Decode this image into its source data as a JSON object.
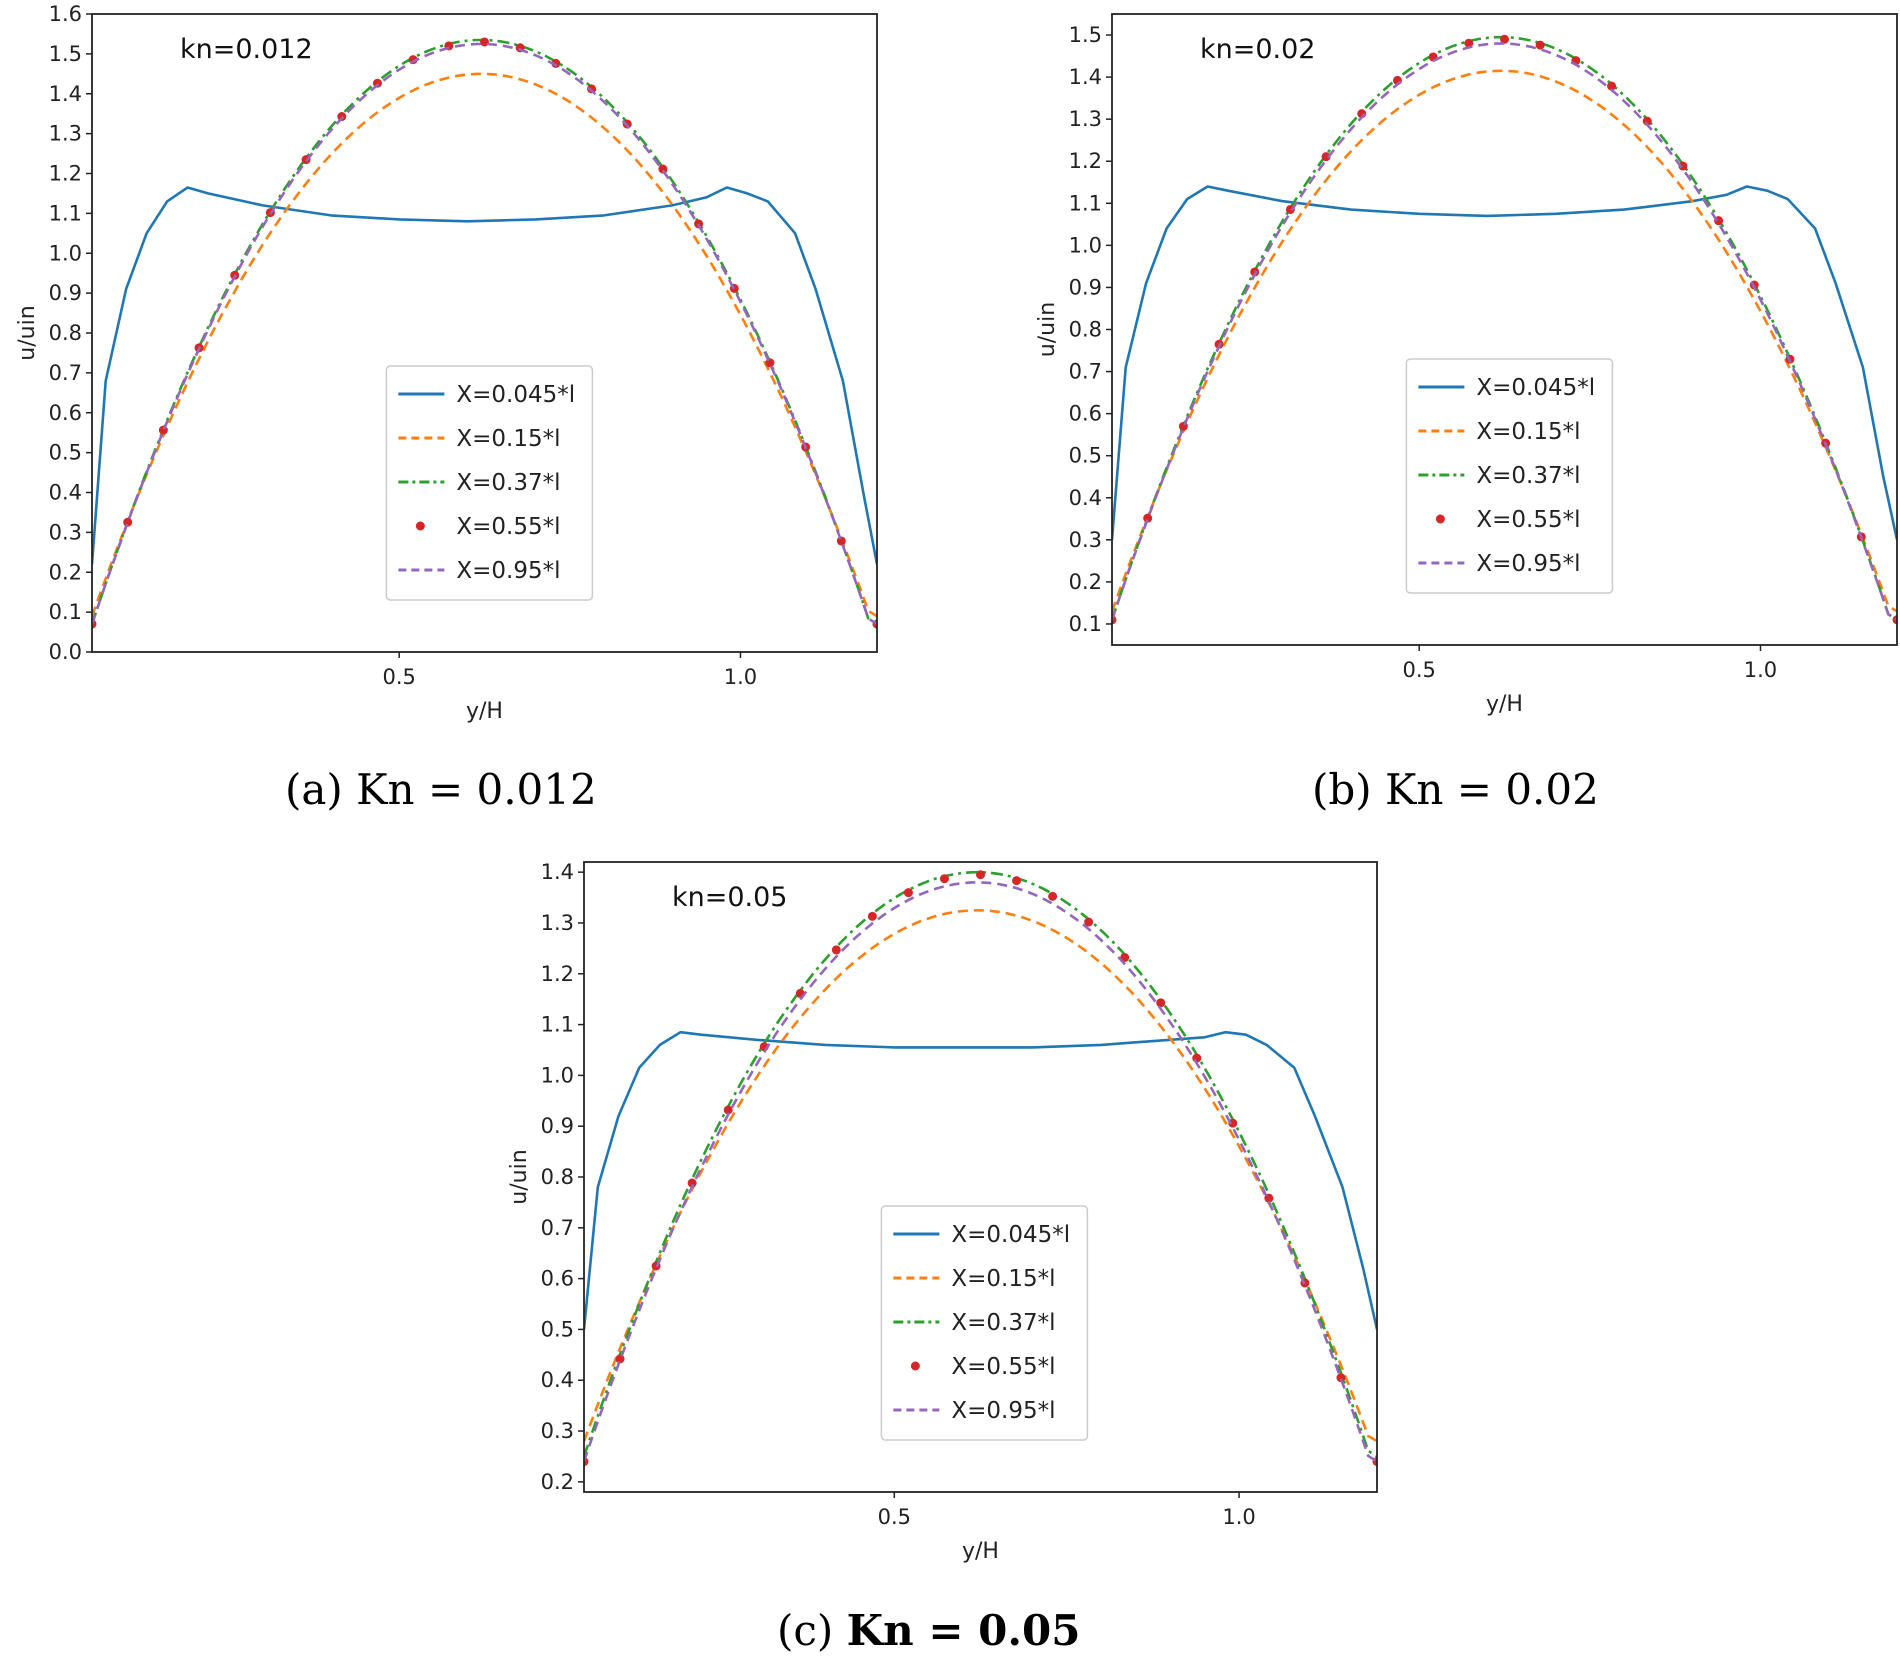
{
  "chart_data": [
    {
      "type": "line",
      "annotation": "kn=0.012",
      "caption": "(a)  Kn = 0.012",
      "xlabel": "y/H",
      "ylabel": "u/uin",
      "xlim": [
        0.05,
        1.2
      ],
      "ylim": [
        0.0,
        1.6
      ],
      "xticks": [
        "0.5",
        "1.0"
      ],
      "yticks": [
        "0.0",
        "0.1",
        "0.2",
        "0.3",
        "0.4",
        "0.5",
        "0.6",
        "0.7",
        "0.8",
        "0.9",
        "1.0",
        "1.1",
        "1.2",
        "1.3",
        "1.4",
        "1.5",
        "1.6"
      ],
      "legend_position": "lower-center",
      "series": [
        {
          "name": "X=0.045*l",
          "color": "#1f77b4",
          "style": "solid",
          "x": [
            0.05,
            0.07,
            0.1,
            0.13,
            0.16,
            0.19,
            0.22,
            0.3,
            0.4,
            0.5,
            0.6,
            0.7,
            0.8,
            0.9,
            0.95,
            0.98,
            1.01,
            1.04,
            1.08,
            1.11,
            1.15,
            1.18,
            1.2
          ],
          "y": [
            0.22,
            0.68,
            0.91,
            1.05,
            1.13,
            1.165,
            1.15,
            1.12,
            1.095,
            1.085,
            1.08,
            1.085,
            1.095,
            1.12,
            1.14,
            1.165,
            1.15,
            1.13,
            1.05,
            0.91,
            0.68,
            0.4,
            0.22
          ]
        },
        {
          "name": "X=0.15*l",
          "color": "#ff7f0e",
          "style": "dashed",
          "peak": 1.45,
          "edge": 0.09
        },
        {
          "name": "X=0.37*l",
          "color": "#2ca02c",
          "style": "dashdot",
          "peak": 1.535,
          "edge": 0.07
        },
        {
          "name": "X=0.55*l",
          "color": "#d62728",
          "style": "dots",
          "peak": 1.53,
          "edge": 0.07
        },
        {
          "name": "X=0.95*l",
          "color": "#9467bd",
          "style": "dashed",
          "peak": 1.525,
          "edge": 0.07
        }
      ]
    },
    {
      "type": "line",
      "annotation": "kn=0.02",
      "caption": "(b)  Kn  = 0.02",
      "xlabel": "y/H",
      "ylabel": "u/uin",
      "xlim": [
        0.05,
        1.2
      ],
      "ylim": [
        0.05,
        1.55
      ],
      "xticks": [
        "0.5",
        "1.0"
      ],
      "yticks": [
        "0.1",
        "0.2",
        "0.3",
        "0.4",
        "0.5",
        "0.6",
        "0.7",
        "0.8",
        "0.9",
        "1.0",
        "1.1",
        "1.2",
        "1.3",
        "1.4",
        "1.5"
      ],
      "legend_position": "lower-center",
      "series": [
        {
          "name": "X=0.045*l",
          "color": "#1f77b4",
          "style": "solid",
          "x": [
            0.05,
            0.07,
            0.1,
            0.13,
            0.16,
            0.19,
            0.22,
            0.3,
            0.4,
            0.5,
            0.6,
            0.7,
            0.8,
            0.9,
            0.95,
            0.98,
            1.01,
            1.04,
            1.08,
            1.11,
            1.15,
            1.18,
            1.2
          ],
          "y": [
            0.3,
            0.71,
            0.91,
            1.04,
            1.11,
            1.14,
            1.13,
            1.105,
            1.085,
            1.075,
            1.07,
            1.075,
            1.085,
            1.105,
            1.12,
            1.14,
            1.13,
            1.11,
            1.04,
            0.91,
            0.71,
            0.45,
            0.3
          ]
        },
        {
          "name": "X=0.15*l",
          "color": "#ff7f0e",
          "style": "dashed",
          "peak": 1.415,
          "edge": 0.13
        },
        {
          "name": "X=0.37*l",
          "color": "#2ca02c",
          "style": "dashdot",
          "peak": 1.495,
          "edge": 0.11
        },
        {
          "name": "X=0.55*l",
          "color": "#d62728",
          "style": "dots",
          "peak": 1.49,
          "edge": 0.11
        },
        {
          "name": "X=0.95*l",
          "color": "#9467bd",
          "style": "dashed",
          "peak": 1.48,
          "edge": 0.11
        }
      ]
    },
    {
      "type": "line",
      "annotation": "kn=0.05",
      "caption_prefix": "(c)",
      "caption_main": "Kn  = 0.05",
      "xlabel": "y/H",
      "ylabel": "u/uin",
      "xlim": [
        0.05,
        1.2
      ],
      "ylim": [
        0.18,
        1.42
      ],
      "xticks": [
        "0.5",
        "1.0"
      ],
      "yticks": [
        "0.2",
        "0.3",
        "0.4",
        "0.5",
        "0.6",
        "0.7",
        "0.8",
        "0.9",
        "1.0",
        "1.1",
        "1.2",
        "1.3",
        "1.4"
      ],
      "legend_position": "lower-center",
      "series": [
        {
          "name": "X=0.045*l",
          "color": "#1f77b4",
          "style": "solid",
          "x": [
            0.05,
            0.07,
            0.1,
            0.13,
            0.16,
            0.19,
            0.22,
            0.3,
            0.4,
            0.5,
            0.6,
            0.7,
            0.8,
            0.9,
            0.95,
            0.98,
            1.01,
            1.04,
            1.08,
            1.11,
            1.15,
            1.18,
            1.2
          ],
          "y": [
            0.5,
            0.78,
            0.92,
            1.015,
            1.06,
            1.085,
            1.08,
            1.07,
            1.06,
            1.055,
            1.055,
            1.055,
            1.06,
            1.07,
            1.075,
            1.085,
            1.08,
            1.06,
            1.015,
            0.92,
            0.78,
            0.62,
            0.5
          ]
        },
        {
          "name": "X=0.15*l",
          "color": "#ff7f0e",
          "style": "dashed",
          "peak": 1.325,
          "edge": 0.28
        },
        {
          "name": "X=0.37*l",
          "color": "#2ca02c",
          "style": "dashdot",
          "peak": 1.4,
          "edge": 0.25
        },
        {
          "name": "X=0.55*l",
          "color": "#d62728",
          "style": "dots",
          "peak": 1.395,
          "edge": 0.24
        },
        {
          "name": "X=0.95*l",
          "color": "#9467bd",
          "style": "dashed",
          "peak": 1.38,
          "edge": 0.24
        }
      ]
    }
  ]
}
